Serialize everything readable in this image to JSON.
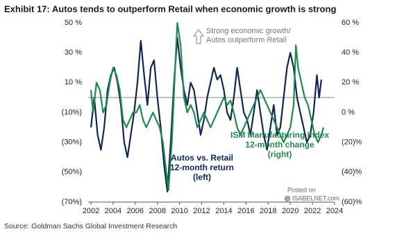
{
  "chart_data": {
    "type": "line",
    "title": "Exhibit 17: Autos tends to outperform Retail when economic growth is strong",
    "source": "Source: Goldman Sachs Global Investment Research",
    "annotation": [
      "Strong economic growth/",
      "Autos outperform Retail"
    ],
    "watermark": [
      "Posted on",
      "ISABELNET.com"
    ],
    "xlim": [
      2002,
      2024
    ],
    "xticks": [
      2002,
      2004,
      2006,
      2008,
      2010,
      2012,
      2014,
      2016,
      2018,
      2020,
      2022,
      2024
    ],
    "ylim": [
      -70,
      50
    ],
    "yticks": [
      {
        "value": 50,
        "label": "50 %"
      },
      {
        "value": 30,
        "label": "30 %"
      },
      {
        "value": 10,
        "label": "10 %"
      },
      {
        "value": -10,
        "label": "(10%)"
      },
      {
        "value": -30,
        "label": "(30%)"
      },
      {
        "value": -50,
        "label": "(50%)"
      },
      {
        "value": -70,
        "label": "(70%)"
      }
    ],
    "y2lim": [
      -60,
      60
    ],
    "y2ticks": [
      {
        "value": 60,
        "label": "60 %"
      },
      {
        "value": 40,
        "label": "40 %"
      },
      {
        "value": 20,
        "label": "20 %"
      },
      {
        "value": 0,
        "label": "0 %"
      },
      {
        "value": -20,
        "label": "(20)%"
      },
      {
        "value": -40,
        "label": "(40)%"
      },
      {
        "value": -60,
        "label": "(60)%"
      }
    ],
    "reference_line": 0,
    "series": [
      {
        "label": [
          "Autos vs. Retail",
          "12-month return",
          "(left)"
        ],
        "color": "#0d2557",
        "axis": "y",
        "x": [
          2002.0,
          2002.3,
          2002.6,
          2002.9,
          2003.2,
          2003.5,
          2003.8,
          2004.1,
          2004.4,
          2004.7,
          2005.0,
          2005.3,
          2005.6,
          2005.9,
          2006.2,
          2006.5,
          2006.8,
          2007.1,
          2007.4,
          2007.7,
          2008.0,
          2008.3,
          2008.6,
          2008.9,
          2009.2,
          2009.5,
          2009.8,
          2010.1,
          2010.4,
          2010.7,
          2011.0,
          2011.3,
          2011.6,
          2011.9,
          2012.2,
          2012.5,
          2012.8,
          2013.1,
          2013.4,
          2013.7,
          2014.0,
          2014.3,
          2014.6,
          2014.9,
          2015.2,
          2015.5,
          2015.8,
          2016.1,
          2016.4,
          2016.7,
          2017.0,
          2017.3,
          2017.6,
          2017.9,
          2018.2,
          2018.5,
          2018.8,
          2019.1,
          2019.4,
          2019.7,
          2020.0,
          2020.3,
          2020.6,
          2020.9,
          2021.2,
          2021.5,
          2021.8,
          2022.1,
          2022.4,
          2022.6,
          2022.8
        ],
        "values": [
          -20,
          0,
          -25,
          -35,
          -20,
          5,
          15,
          20,
          10,
          -5,
          -30,
          -40,
          -25,
          -10,
          10,
          38,
          15,
          -5,
          20,
          25,
          0,
          -20,
          -45,
          -63,
          -30,
          10,
          40,
          20,
          5,
          -5,
          10,
          5,
          -10,
          -25,
          -15,
          0,
          10,
          20,
          12,
          15,
          5,
          -10,
          -15,
          0,
          20,
          5,
          -10,
          -15,
          -25,
          -10,
          5,
          -10,
          -25,
          -35,
          -20,
          -5,
          -25,
          -20,
          0,
          20,
          30,
          20,
          0,
          -10,
          -20,
          -30,
          -25,
          -10,
          15,
          0,
          12
        ]
      },
      {
        "label": [
          "ISM Manufacturing Index",
          "12-month change",
          "(right)"
        ],
        "color": "#1e8a4a",
        "axis": "y2",
        "x": [
          2002.0,
          2002.2,
          2002.5,
          2002.8,
          2003.1,
          2003.4,
          2003.7,
          2004.0,
          2004.3,
          2004.6,
          2004.9,
          2005.2,
          2005.5,
          2005.8,
          2006.1,
          2006.4,
          2006.7,
          2007.0,
          2007.3,
          2007.6,
          2007.9,
          2008.2,
          2008.5,
          2008.8,
          2009.0,
          2009.3,
          2009.6,
          2009.8,
          2010.1,
          2010.4,
          2010.7,
          2011.0,
          2011.3,
          2011.6,
          2011.9,
          2012.2,
          2012.5,
          2012.8,
          2013.1,
          2013.4,
          2013.7,
          2014.0,
          2014.3,
          2014.6,
          2014.9,
          2015.2,
          2015.5,
          2015.8,
          2016.1,
          2016.4,
          2016.7,
          2017.0,
          2017.3,
          2017.6,
          2017.9,
          2018.2,
          2018.5,
          2018.8,
          2019.1,
          2019.4,
          2019.7,
          2020.0,
          2020.3,
          2020.5,
          2020.7,
          2021.0,
          2021.3,
          2021.6,
          2021.9,
          2022.2,
          2022.5,
          2022.8,
          2023.0
        ],
        "values": [
          15,
          0,
          20,
          15,
          0,
          5,
          20,
          30,
          25,
          15,
          -5,
          -10,
          -5,
          0,
          0,
          5,
          -5,
          -10,
          -5,
          0,
          -5,
          -10,
          -20,
          -40,
          -52,
          -20,
          30,
          60,
          45,
          10,
          0,
          5,
          0,
          -10,
          -5,
          0,
          -5,
          -10,
          -5,
          0,
          5,
          10,
          5,
          8,
          0,
          -10,
          -15,
          -10,
          -5,
          0,
          5,
          10,
          15,
          10,
          5,
          0,
          -5,
          -10,
          -15,
          -20,
          -15,
          -10,
          5,
          45,
          30,
          20,
          10,
          5,
          -5,
          -15,
          -20,
          -15,
          -10
        ]
      }
    ]
  }
}
